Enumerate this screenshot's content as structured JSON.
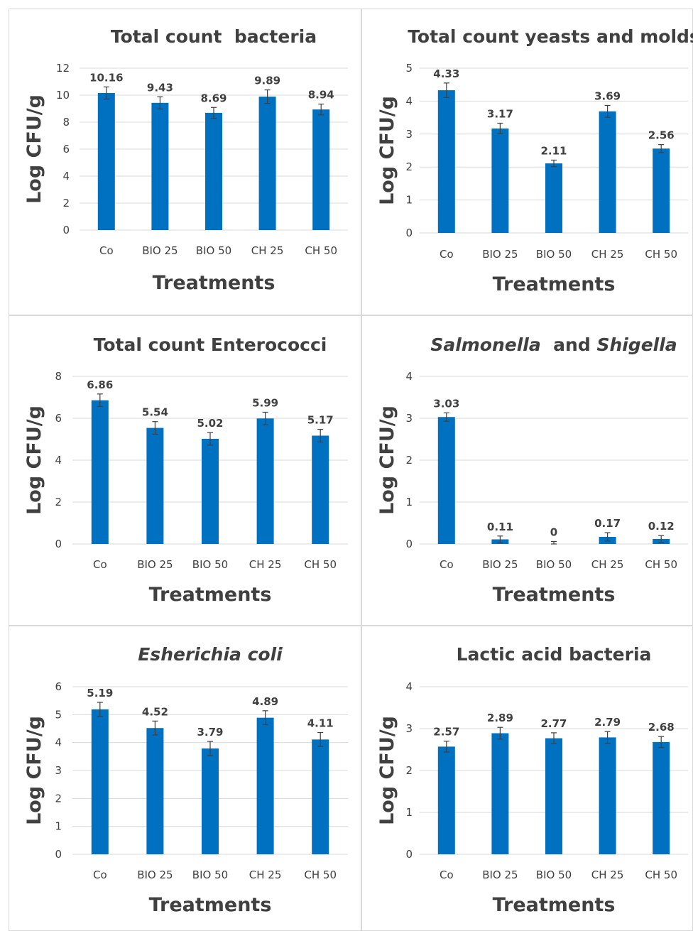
{
  "chart_data": [
    {
      "type": "bar",
      "title": "Total count  bacteria",
      "title_italic": false,
      "categories": [
        "Co",
        "BIO 25",
        "BIO 50",
        "CH 25",
        "CH 50"
      ],
      "values": [
        10.16,
        9.43,
        8.69,
        9.89,
        8.94
      ],
      "value_labels": [
        "10.16",
        "9.43",
        "8.69",
        "9.89",
        "8.94"
      ],
      "errors": [
        0.45,
        0.45,
        0.4,
        0.5,
        0.4
      ],
      "ylim": [
        0,
        12
      ],
      "yticks": [
        0,
        2,
        4,
        6,
        8,
        10,
        12
      ],
      "ytick_labels": [
        "0",
        "2",
        "4",
        "6",
        "8",
        "10",
        "12"
      ],
      "xlabel": "Treatments",
      "ylabel": "Log CFU/g",
      "grid": true
    },
    {
      "type": "bar",
      "title": "Total count yeasts and molds",
      "title_italic": false,
      "categories": [
        "Co",
        "BIO 25",
        "BIO 50",
        "CH 25",
        "CH 50"
      ],
      "values": [
        4.33,
        3.17,
        2.11,
        3.69,
        2.56
      ],
      "value_labels": [
        "4.33",
        "3.17",
        "2.11",
        "3.69",
        "2.56"
      ],
      "errors": [
        0.22,
        0.16,
        0.1,
        0.18,
        0.12
      ],
      "ylim": [
        0,
        5
      ],
      "yticks": [
        0,
        1,
        2,
        3,
        4,
        5
      ],
      "ytick_labels": [
        "0",
        "1",
        "2",
        "3",
        "4",
        "5"
      ],
      "xlabel": "Treatments",
      "ylabel": "Log CFU/g",
      "grid": true
    },
    {
      "type": "bar",
      "title": "Total count Enterococci",
      "title_italic": false,
      "categories": [
        "Co",
        "BIO 25",
        "BIO 50",
        "CH 25",
        "CH 50"
      ],
      "values": [
        6.86,
        5.54,
        5.02,
        5.99,
        5.17
      ],
      "value_labels": [
        "6.86",
        "5.54",
        "5.02",
        "5.99",
        "5.17"
      ],
      "errors": [
        0.3,
        0.3,
        0.3,
        0.3,
        0.3
      ],
      "ylim": [
        0,
        8
      ],
      "yticks": [
        0,
        2,
        4,
        6,
        8
      ],
      "ytick_labels": [
        "0",
        "2",
        "4",
        "6",
        "8"
      ],
      "xlabel": "Treatments",
      "ylabel": "Log CFU/g",
      "grid": true
    },
    {
      "type": "bar",
      "title_parts": [
        {
          "text": "Salmonella",
          "italic": true
        },
        {
          "text": "  and ",
          "italic": false
        },
        {
          "text": "Shigella",
          "italic": true
        }
      ],
      "categories": [
        "Co",
        "BIO 25",
        "BIO 50",
        "CH 25",
        "CH 50"
      ],
      "values": [
        3.03,
        0.11,
        0,
        0.17,
        0.12
      ],
      "value_labels": [
        "3.03",
        "0.11",
        "0",
        "0.17",
        "0.12"
      ],
      "errors": [
        0.1,
        0.08,
        0.06,
        0.1,
        0.08
      ],
      "ylim": [
        0,
        4
      ],
      "yticks": [
        0,
        1,
        2,
        3,
        4
      ],
      "ytick_labels": [
        "0",
        "1",
        "2",
        "3",
        "4"
      ],
      "xlabel": "Treatments",
      "ylabel": "Log CFU/g",
      "grid": true
    },
    {
      "type": "bar",
      "title": "Esherichia coli",
      "title_italic": true,
      "categories": [
        "Co",
        "BIO 25",
        "BIO 50",
        "CH 25",
        "CH 50"
      ],
      "values": [
        5.19,
        4.52,
        3.79,
        4.89,
        4.11
      ],
      "value_labels": [
        "5.19",
        "4.52",
        "3.79",
        "4.89",
        "4.11"
      ],
      "errors": [
        0.25,
        0.25,
        0.25,
        0.25,
        0.25
      ],
      "ylim": [
        0,
        6
      ],
      "yticks": [
        0,
        1,
        2,
        3,
        4,
        5,
        6
      ],
      "ytick_labels": [
        "0",
        "1",
        "2",
        "3",
        "4",
        "5",
        "6"
      ],
      "xlabel": "Treatments",
      "ylabel": "Log CFU/g",
      "grid": true
    },
    {
      "type": "bar",
      "title": "Lactic acid bacteria",
      "title_italic": false,
      "categories": [
        "Co",
        "BIO 25",
        "BIO 50",
        "CH 25",
        "CH 50"
      ],
      "values": [
        2.57,
        2.89,
        2.77,
        2.79,
        2.68
      ],
      "value_labels": [
        "2.57",
        "2.89",
        "2.77",
        "2.79",
        "2.68"
      ],
      "errors": [
        0.13,
        0.14,
        0.13,
        0.14,
        0.13
      ],
      "ylim": [
        0,
        4
      ],
      "yticks": [
        0,
        1,
        2,
        3,
        4
      ],
      "ytick_labels": [
        "0",
        "1",
        "2",
        "3",
        "4"
      ],
      "xlabel": "Treatments",
      "ylabel": "Log CFU/g",
      "grid": true
    }
  ],
  "colors": {
    "bar": "#0070c0",
    "gridline": "#d9d9d9",
    "text": "#404040",
    "error_bar": "#404040",
    "panel_border": "#d9d9d9"
  }
}
